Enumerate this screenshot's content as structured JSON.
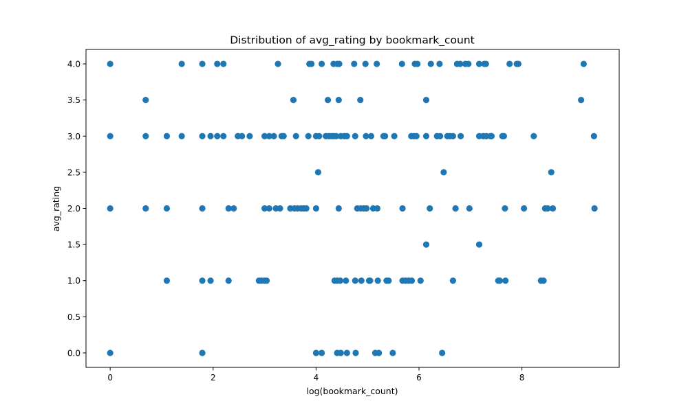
{
  "chart_data": {
    "type": "scatter",
    "title": "Distribution of avg_rating by bookmark_count",
    "xlabel": "log(bookmark_count)",
    "ylabel": "avg_rating",
    "xlim": [
      -0.47,
      9.89
    ],
    "ylim": [
      -0.2,
      4.2
    ],
    "xticks": [
      0,
      2,
      4,
      6,
      8
    ],
    "xtick_labels": [
      "0",
      "2",
      "4",
      "6",
      "8"
    ],
    "yticks": [
      0,
      0.5,
      1,
      1.5,
      2,
      2.5,
      3,
      3.5,
      4
    ],
    "ytick_labels": [
      "0.0",
      "0.5",
      "1.0",
      "1.5",
      "2.0",
      "2.5",
      "3.0",
      "3.5",
      "4.0"
    ],
    "grid": false,
    "marker_color": "#1f77b4",
    "points": [
      {
        "x": 0,
        "y": 4
      },
      {
        "x": 0,
        "y": 3
      },
      {
        "x": 0,
        "y": 2
      },
      {
        "x": 0,
        "y": 0
      },
      {
        "x": 0.69,
        "y": 3.5
      },
      {
        "x": 0.69,
        "y": 3
      },
      {
        "x": 0.69,
        "y": 2
      },
      {
        "x": 1.1,
        "y": 3
      },
      {
        "x": 1.1,
        "y": 2
      },
      {
        "x": 1.1,
        "y": 1
      },
      {
        "x": 1.39,
        "y": 4
      },
      {
        "x": 1.39,
        "y": 3
      },
      {
        "x": 1.79,
        "y": 4
      },
      {
        "x": 1.79,
        "y": 3
      },
      {
        "x": 1.79,
        "y": 2
      },
      {
        "x": 1.79,
        "y": 1
      },
      {
        "x": 1.79,
        "y": 0
      },
      {
        "x": 1.95,
        "y": 3
      },
      {
        "x": 1.95,
        "y": 1
      },
      {
        "x": 2.08,
        "y": 4
      },
      {
        "x": 2.08,
        "y": 3
      },
      {
        "x": 2.2,
        "y": 4
      },
      {
        "x": 2.2,
        "y": 3
      },
      {
        "x": 2.3,
        "y": 2
      },
      {
        "x": 2.3,
        "y": 1
      },
      {
        "x": 2.4,
        "y": 2
      },
      {
        "x": 2.48,
        "y": 3
      },
      {
        "x": 2.56,
        "y": 3
      },
      {
        "x": 2.71,
        "y": 3
      },
      {
        "x": 2.89,
        "y": 1
      },
      {
        "x": 2.94,
        "y": 1
      },
      {
        "x": 3.0,
        "y": 3
      },
      {
        "x": 3.0,
        "y": 2
      },
      {
        "x": 3.0,
        "y": 1
      },
      {
        "x": 3.04,
        "y": 1
      },
      {
        "x": 3.09,
        "y": 3
      },
      {
        "x": 3.09,
        "y": 2
      },
      {
        "x": 3.18,
        "y": 3
      },
      {
        "x": 3.22,
        "y": 2
      },
      {
        "x": 3.26,
        "y": 4
      },
      {
        "x": 3.3,
        "y": 2
      },
      {
        "x": 3.33,
        "y": 3
      },
      {
        "x": 3.37,
        "y": 3
      },
      {
        "x": 3.5,
        "y": 2
      },
      {
        "x": 3.56,
        "y": 3.5
      },
      {
        "x": 3.58,
        "y": 2
      },
      {
        "x": 3.61,
        "y": 3
      },
      {
        "x": 3.64,
        "y": 2
      },
      {
        "x": 3.71,
        "y": 2
      },
      {
        "x": 3.76,
        "y": 2
      },
      {
        "x": 3.81,
        "y": 2
      },
      {
        "x": 3.85,
        "y": 3
      },
      {
        "x": 3.87,
        "y": 4
      },
      {
        "x": 3.91,
        "y": 4
      },
      {
        "x": 4.0,
        "y": 3
      },
      {
        "x": 4.0,
        "y": 2
      },
      {
        "x": 4.0,
        "y": 0
      },
      {
        "x": 4.04,
        "y": 2.5
      },
      {
        "x": 4.06,
        "y": 3
      },
      {
        "x": 4.11,
        "y": 4
      },
      {
        "x": 4.11,
        "y": 0
      },
      {
        "x": 4.19,
        "y": 3
      },
      {
        "x": 4.23,
        "y": 3.5
      },
      {
        "x": 4.25,
        "y": 3
      },
      {
        "x": 4.3,
        "y": 3
      },
      {
        "x": 4.34,
        "y": 4
      },
      {
        "x": 4.34,
        "y": 3
      },
      {
        "x": 4.36,
        "y": 1
      },
      {
        "x": 4.39,
        "y": 3
      },
      {
        "x": 4.41,
        "y": 4
      },
      {
        "x": 4.41,
        "y": 1
      },
      {
        "x": 4.41,
        "y": 0
      },
      {
        "x": 4.44,
        "y": 3.5
      },
      {
        "x": 4.44,
        "y": 2
      },
      {
        "x": 4.45,
        "y": 4
      },
      {
        "x": 4.47,
        "y": 1
      },
      {
        "x": 4.48,
        "y": 3
      },
      {
        "x": 4.48,
        "y": 0
      },
      {
        "x": 4.55,
        "y": 3
      },
      {
        "x": 4.58,
        "y": 1
      },
      {
        "x": 4.6,
        "y": 3
      },
      {
        "x": 4.6,
        "y": 0
      },
      {
        "x": 4.74,
        "y": 4
      },
      {
        "x": 4.76,
        "y": 3
      },
      {
        "x": 4.76,
        "y": 1
      },
      {
        "x": 4.77,
        "y": 0
      },
      {
        "x": 4.8,
        "y": 2
      },
      {
        "x": 4.86,
        "y": 3.5
      },
      {
        "x": 4.87,
        "y": 2
      },
      {
        "x": 4.88,
        "y": 1
      },
      {
        "x": 4.93,
        "y": 2
      },
      {
        "x": 4.96,
        "y": 4
      },
      {
        "x": 4.97,
        "y": 3
      },
      {
        "x": 4.98,
        "y": 2
      },
      {
        "x": 5.03,
        "y": 1
      },
      {
        "x": 5.05,
        "y": 1
      },
      {
        "x": 5.07,
        "y": 3
      },
      {
        "x": 5.11,
        "y": 2
      },
      {
        "x": 5.15,
        "y": 0
      },
      {
        "x": 5.18,
        "y": 4
      },
      {
        "x": 5.19,
        "y": 2
      },
      {
        "x": 5.2,
        "y": 1
      },
      {
        "x": 5.22,
        "y": 0
      },
      {
        "x": 5.31,
        "y": 3
      },
      {
        "x": 5.34,
        "y": 3
      },
      {
        "x": 5.37,
        "y": 1
      },
      {
        "x": 5.41,
        "y": 1
      },
      {
        "x": 5.49,
        "y": 0
      },
      {
        "x": 5.52,
        "y": 3
      },
      {
        "x": 5.67,
        "y": 4
      },
      {
        "x": 5.68,
        "y": 2
      },
      {
        "x": 5.68,
        "y": 1
      },
      {
        "x": 5.74,
        "y": 1
      },
      {
        "x": 5.8,
        "y": 1
      },
      {
        "x": 5.85,
        "y": 3
      },
      {
        "x": 5.86,
        "y": 1
      },
      {
        "x": 5.9,
        "y": 3
      },
      {
        "x": 5.92,
        "y": 4
      },
      {
        "x": 5.95,
        "y": 3
      },
      {
        "x": 5.97,
        "y": 4
      },
      {
        "x": 6.03,
        "y": 1
      },
      {
        "x": 6.14,
        "y": 3.5
      },
      {
        "x": 6.14,
        "y": 1.5
      },
      {
        "x": 6.14,
        "y": 3
      },
      {
        "x": 6.21,
        "y": 2
      },
      {
        "x": 6.23,
        "y": 4
      },
      {
        "x": 6.35,
        "y": 3
      },
      {
        "x": 6.4,
        "y": 4
      },
      {
        "x": 6.41,
        "y": 3
      },
      {
        "x": 6.45,
        "y": 0
      },
      {
        "x": 6.48,
        "y": 2.5
      },
      {
        "x": 6.55,
        "y": 3
      },
      {
        "x": 6.6,
        "y": 3
      },
      {
        "x": 6.66,
        "y": 3
      },
      {
        "x": 6.66,
        "y": 1
      },
      {
        "x": 6.71,
        "y": 2
      },
      {
        "x": 6.74,
        "y": 4
      },
      {
        "x": 6.8,
        "y": 4
      },
      {
        "x": 6.81,
        "y": 3
      },
      {
        "x": 6.9,
        "y": 4
      },
      {
        "x": 6.96,
        "y": 4
      },
      {
        "x": 6.98,
        "y": 2
      },
      {
        "x": 7.17,
        "y": 1.5
      },
      {
        "x": 7.17,
        "y": 3
      },
      {
        "x": 7.17,
        "y": 4
      },
      {
        "x": 7.25,
        "y": 3
      },
      {
        "x": 7.27,
        "y": 4
      },
      {
        "x": 7.3,
        "y": 4
      },
      {
        "x": 7.31,
        "y": 3
      },
      {
        "x": 7.39,
        "y": 3
      },
      {
        "x": 7.41,
        "y": 3
      },
      {
        "x": 7.54,
        "y": 1
      },
      {
        "x": 7.57,
        "y": 1
      },
      {
        "x": 7.62,
        "y": 3
      },
      {
        "x": 7.65,
        "y": 3
      },
      {
        "x": 7.67,
        "y": 2
      },
      {
        "x": 7.68,
        "y": 1
      },
      {
        "x": 7.76,
        "y": 4
      },
      {
        "x": 7.9,
        "y": 4
      },
      {
        "x": 7.93,
        "y": 4
      },
      {
        "x": 8.04,
        "y": 2
      },
      {
        "x": 8.23,
        "y": 3
      },
      {
        "x": 8.37,
        "y": 1
      },
      {
        "x": 8.42,
        "y": 1
      },
      {
        "x": 8.45,
        "y": 2
      },
      {
        "x": 8.5,
        "y": 2
      },
      {
        "x": 8.57,
        "y": 2.5
      },
      {
        "x": 8.6,
        "y": 2
      },
      {
        "x": 9.15,
        "y": 3.5
      },
      {
        "x": 9.2,
        "y": 4
      },
      {
        "x": 9.4,
        "y": 3
      },
      {
        "x": 9.41,
        "y": 2
      }
    ]
  }
}
